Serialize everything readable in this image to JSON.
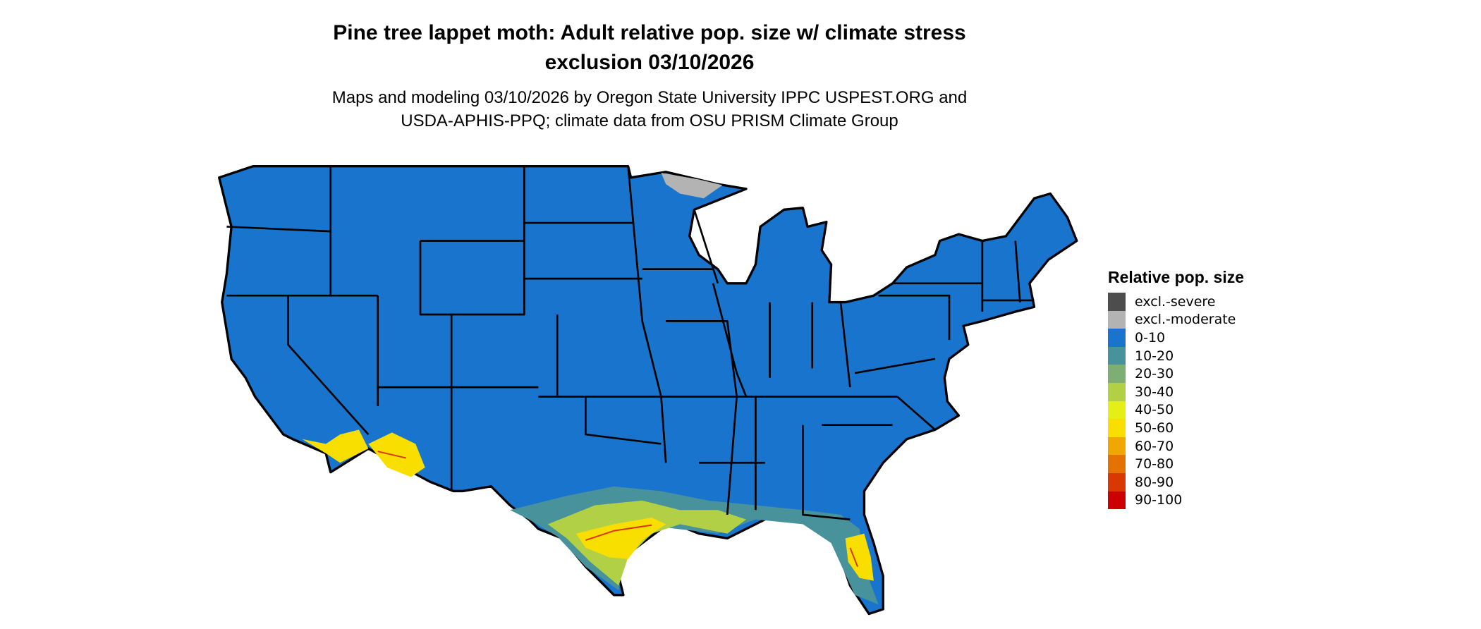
{
  "title": {
    "line1": "Pine tree lappet moth: Adult relative pop. size w/ climate stress",
    "line2": "exclusion 03/10/2026"
  },
  "subtitle": {
    "line1": "Maps and modeling 03/10/2026 by Oregon State University IPPC USPEST.ORG and",
    "line2": "USDA-APHIS-PPQ; climate data from OSU PRISM Climate Group"
  },
  "map": {
    "region": "Contiguous United States",
    "base_color": "#1874CD",
    "border_color": "#000000"
  },
  "legend": {
    "title": "Relative pop. size",
    "items": [
      {
        "label": "excl.-severe",
        "color": "#4D4D4D"
      },
      {
        "label": "excl.-moderate",
        "color": "#B3B3B3"
      },
      {
        "label": "0-10",
        "color": "#1874CD"
      },
      {
        "label": "10-20",
        "color": "#48929B"
      },
      {
        "label": "20-30",
        "color": "#7DAF73"
      },
      {
        "label": "30-40",
        "color": "#B2D045"
      },
      {
        "label": "40-50",
        "color": "#E5EE16"
      },
      {
        "label": "50-60",
        "color": "#F9DF00"
      },
      {
        "label": "60-70",
        "color": "#F0A800"
      },
      {
        "label": "70-80",
        "color": "#E47200"
      },
      {
        "label": "80-90",
        "color": "#D93800"
      },
      {
        "label": "90-100",
        "color": "#CD0000"
      }
    ]
  }
}
